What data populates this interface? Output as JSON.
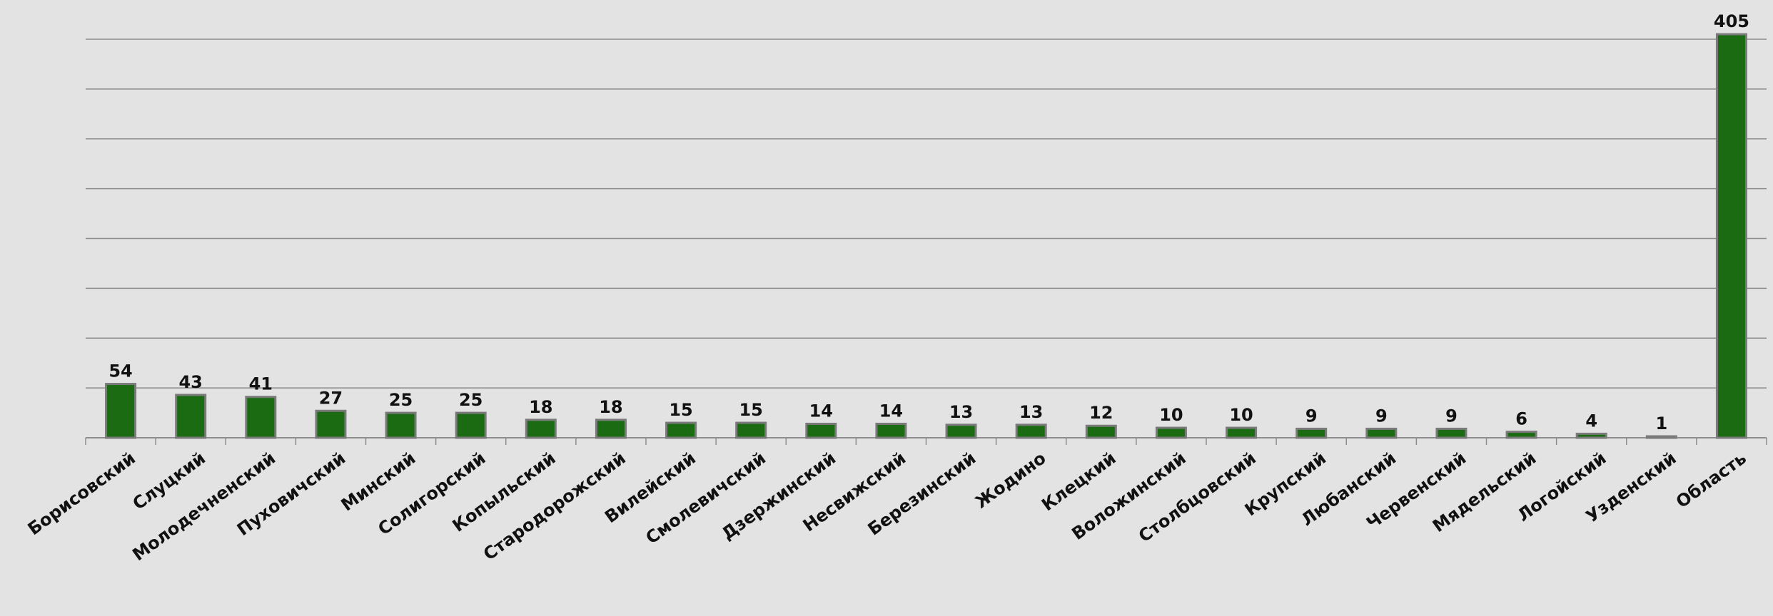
{
  "chart_data": {
    "type": "bar",
    "categories": [
      "Борисовский",
      "Слуцкий",
      "Молодечненский",
      "Пуховичский",
      "Минский",
      "Солигорский",
      "Копыльский",
      "Стародорожский",
      "Вилейский",
      "Смолевичский",
      "Дзержинский",
      "Несвижский",
      "Березинский",
      "Жодино",
      "Клецкий",
      "Воложинский",
      "Столбцовский",
      "Крупский",
      "Любанский",
      "Червенский",
      "Мядельский",
      "Логойский",
      "Узденский",
      "Область"
    ],
    "values": [
      54,
      43,
      41,
      27,
      25,
      25,
      18,
      18,
      15,
      15,
      14,
      14,
      13,
      13,
      12,
      10,
      10,
      9,
      9,
      9,
      6,
      4,
      1,
      405
    ],
    "ylim": [
      0,
      400
    ],
    "grid": true,
    "bar_color": "#1a6b12",
    "bar_border_color": "#7a7a7a",
    "gridline_color": "#8c8c8c"
  }
}
